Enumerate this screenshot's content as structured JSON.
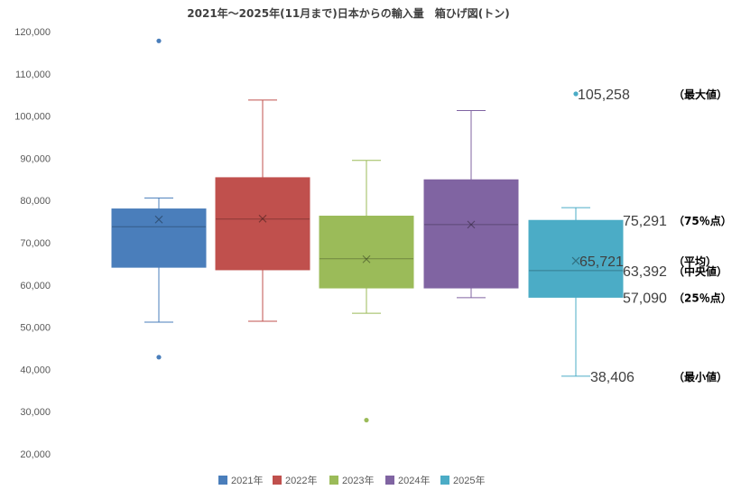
{
  "chart_data": {
    "type": "box",
    "title": "2021年～2025年(11月まで)日本からの輸入量　箱ひげ図(トン)",
    "ylim": [
      20000,
      120000
    ],
    "y_ticks": [
      "20,000",
      "30,000",
      "40,000",
      "50,000",
      "60,000",
      "70,000",
      "80,000",
      "90,000",
      "100,000",
      "110,000",
      "120,000"
    ],
    "series": [
      {
        "name": "2021年",
        "color": "#4a7ebb",
        "min": 51200,
        "q1": 64200,
        "median": 73800,
        "q3": 78000,
        "max": 80600,
        "mean": 75500,
        "outliers": [
          117800,
          42900
        ]
      },
      {
        "name": "2022年",
        "color": "#c0504d",
        "min": 51400,
        "q1": 63600,
        "median": 75600,
        "q3": 85400,
        "max": 103800,
        "mean": 75700,
        "outliers": []
      },
      {
        "name": "2023年",
        "color": "#9bbb59",
        "min": 53300,
        "q1": 59300,
        "median": 66200,
        "q3": 76300,
        "max": 89500,
        "mean": 66100,
        "outliers": [
          28000
        ]
      },
      {
        "name": "2024年",
        "color": "#8064a2",
        "min": 57000,
        "q1": 59300,
        "median": 74300,
        "q3": 84900,
        "max": 101300,
        "mean": 74300,
        "outliers": []
      },
      {
        "name": "2025年",
        "color": "#4bacc6",
        "min": 38406,
        "q1": 57090,
        "median": 63392,
        "q3": 75291,
        "max": 78300,
        "mean": 65721,
        "outliers": [
          105258
        ]
      }
    ],
    "value_labels": [
      {
        "text": "105,258",
        "y": 105258
      },
      {
        "text": "75,291",
        "y": 75291
      },
      {
        "text": "65,721",
        "y": 65721
      },
      {
        "text": "63,392",
        "y": 63392
      },
      {
        "text": "57,090",
        "y": 57090
      },
      {
        "text": "38,406",
        "y": 38406
      }
    ],
    "annotations": [
      {
        "text": "（最大値）",
        "y": 105258
      },
      {
        "text": "（75％点）",
        "y": 75291
      },
      {
        "text": "（平均）",
        "y": 65721
      },
      {
        "text": "（中央値）",
        "y": 63392
      },
      {
        "text": "（25％点）",
        "y": 57090
      },
      {
        "text": "（最小値）",
        "y": 38406
      }
    ]
  }
}
